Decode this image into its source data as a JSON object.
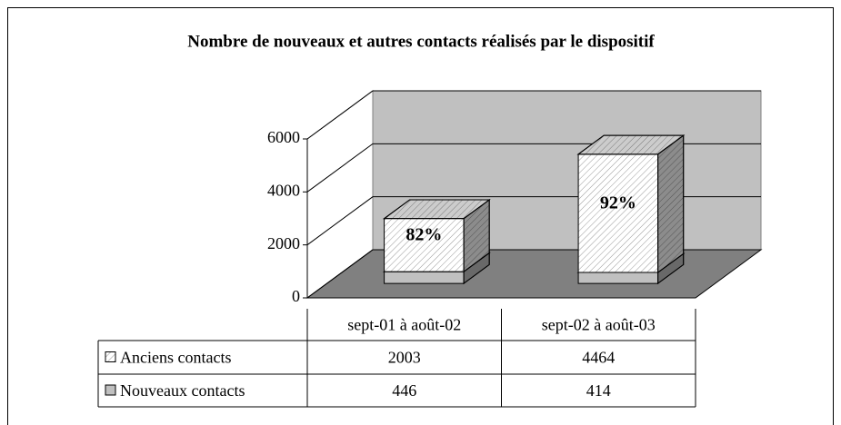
{
  "chart_data": {
    "type": "bar3d_stacked",
    "title": "Nombre de nouveaux et autres contacts réalisés par le dispositif",
    "categories": [
      "sept-01 à août-02",
      "sept-02 à août-03"
    ],
    "series": [
      {
        "name": "Nouveaux contacts",
        "color": "#c0c0c0",
        "hatch": false,
        "values": [
          446,
          414
        ]
      },
      {
        "name": "Anciens contacts",
        "color": "#ffffff",
        "hatch": true,
        "values": [
          2003,
          4464
        ]
      }
    ],
    "annotations": [
      "82%",
      "92%"
    ],
    "ylim": [
      0,
      6000
    ],
    "yticks": [
      0,
      2000,
      4000,
      6000
    ],
    "grid": true,
    "legend": "table"
  }
}
